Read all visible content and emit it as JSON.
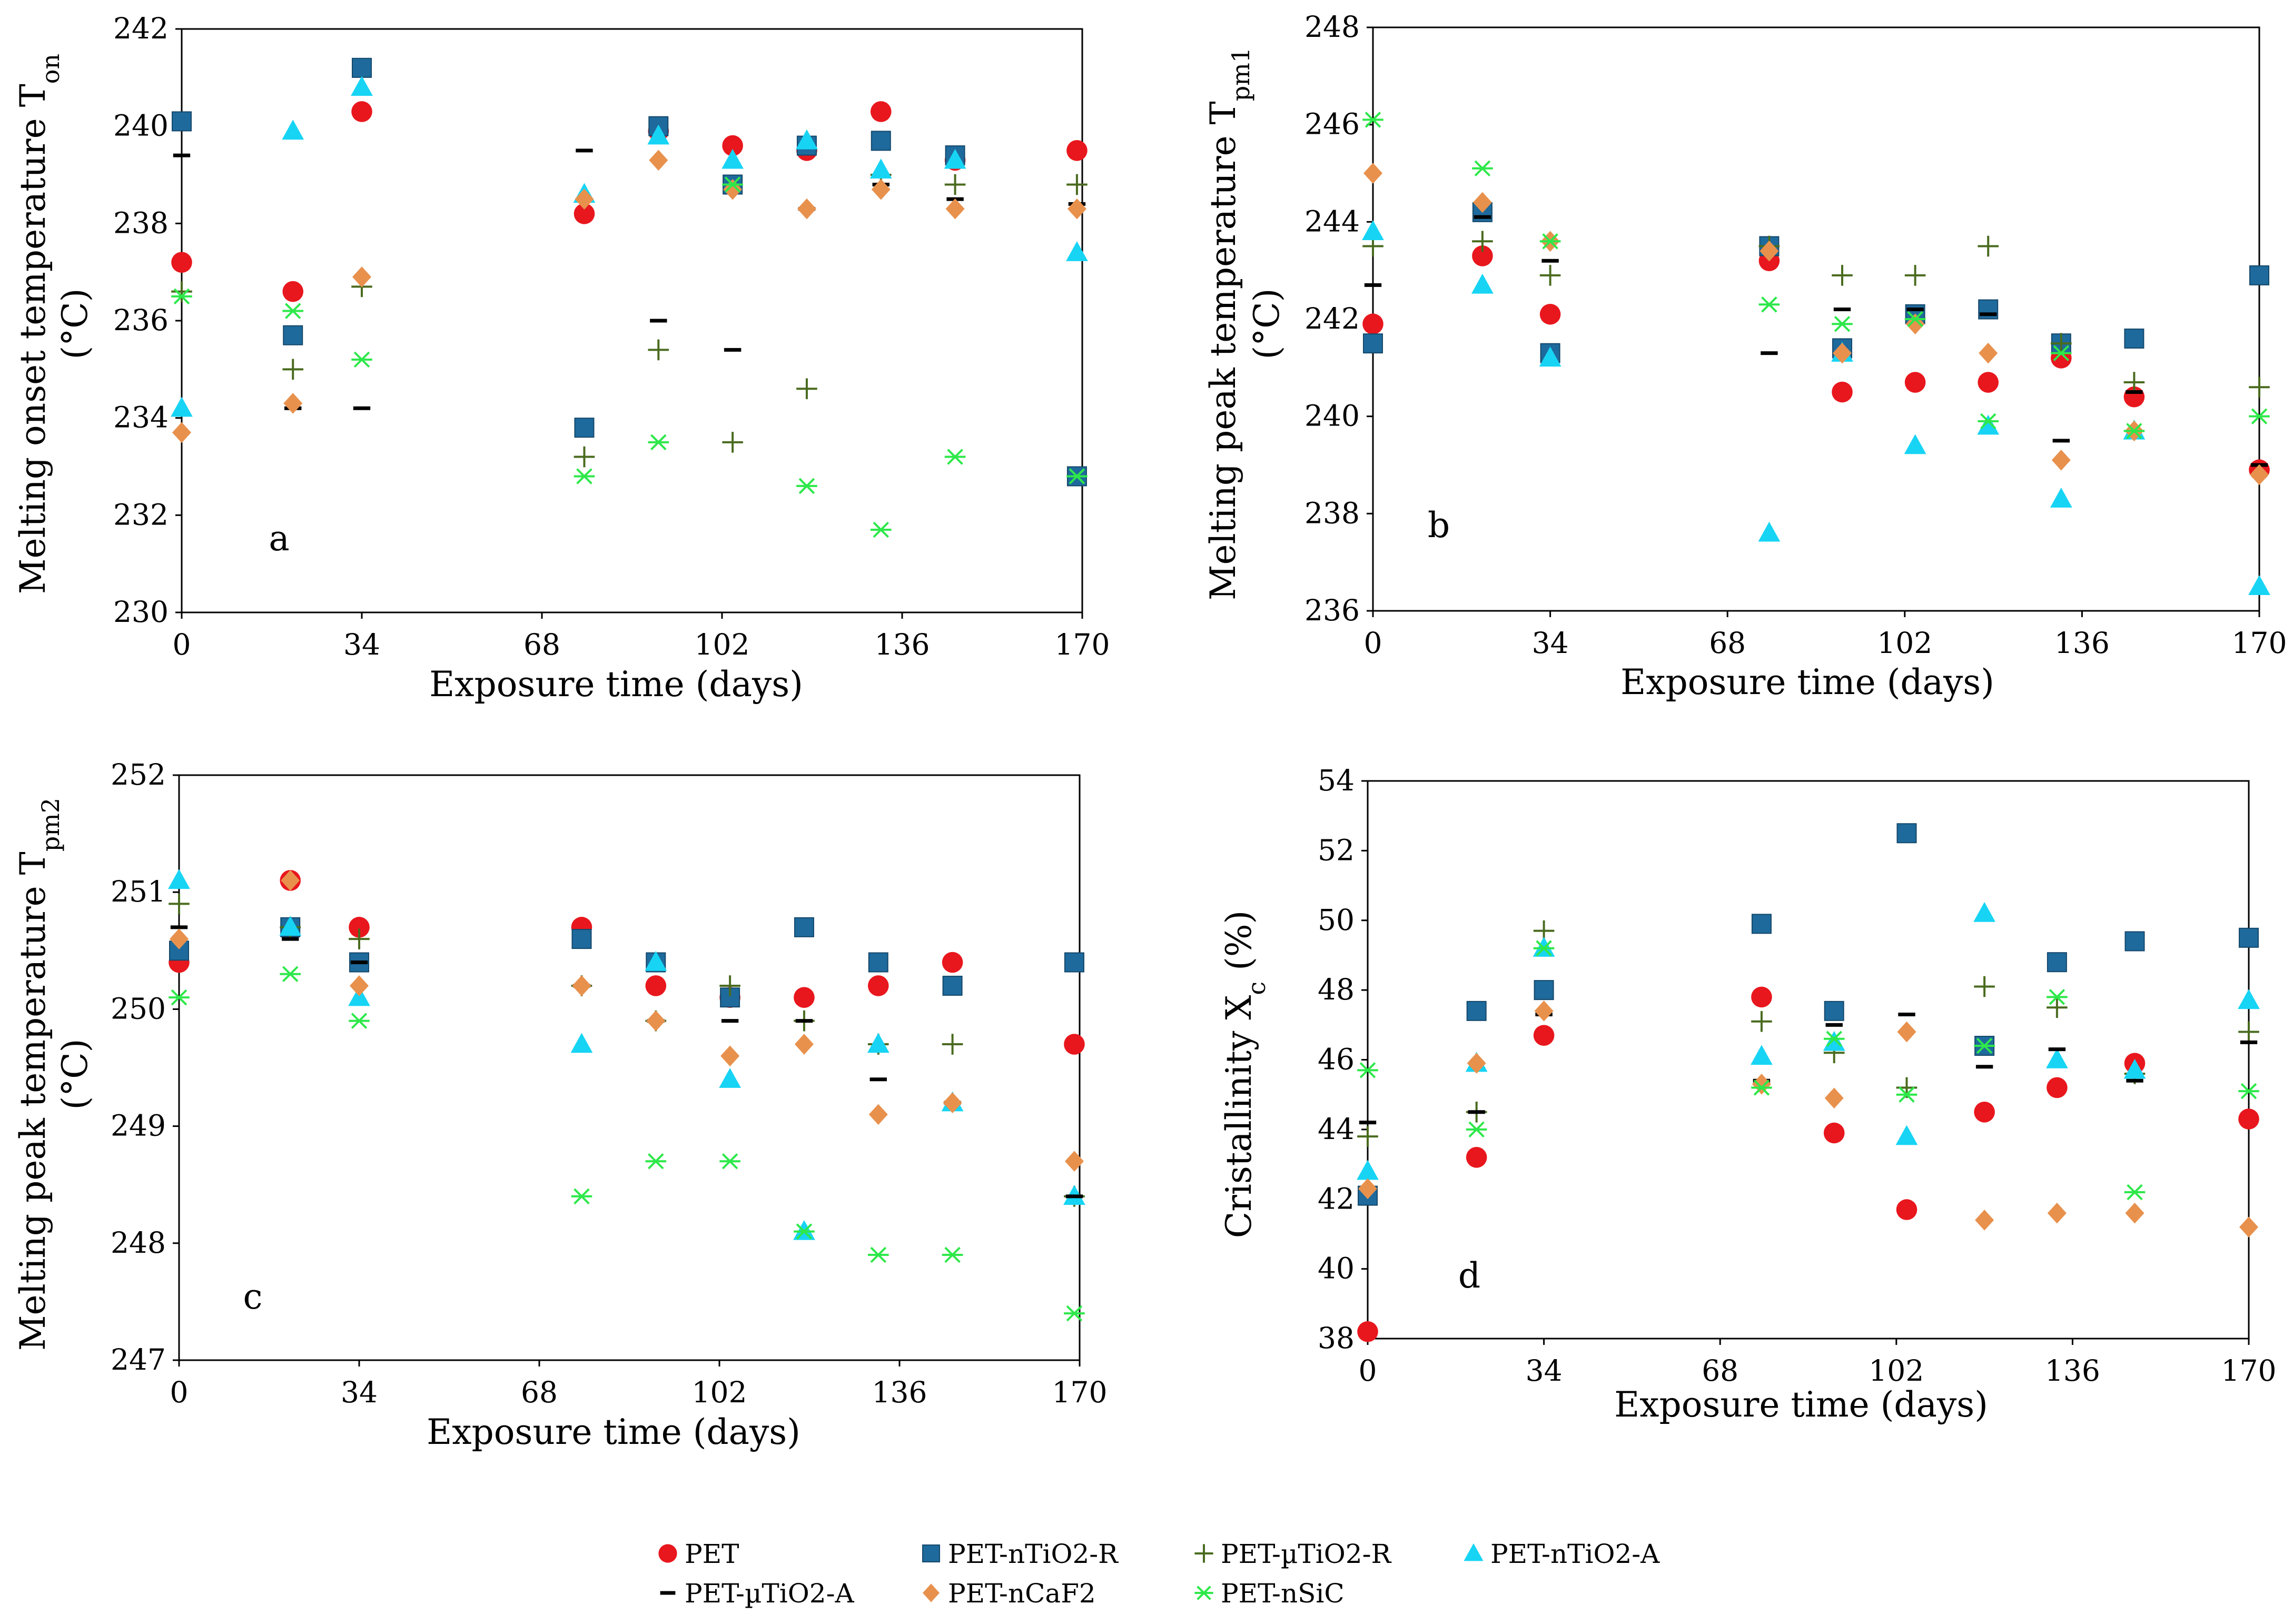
{
  "chart_data": [
    {
      "type": "scatter",
      "panel_label": "a",
      "ylabel_main": "Melting onset temperature T",
      "ylabel_sub": "on",
      "ylabel_unit": "(°C)",
      "xlabel": "Exposure time (days)",
      "xlim": [
        0,
        170
      ],
      "ylim": [
        230,
        242
      ],
      "xticks": [
        0,
        34,
        68,
        102,
        136,
        170
      ],
      "yticks": [
        230,
        232,
        234,
        236,
        238,
        240,
        242
      ],
      "series": [
        {
          "name": "PET",
          "x": [
            0,
            21,
            34,
            76,
            90,
            104,
            118,
            132,
            146,
            169
          ],
          "y": [
            237.2,
            236.6,
            240.3,
            238.2,
            239.9,
            239.6,
            239.5,
            240.3,
            239.3,
            239.5
          ]
        },
        {
          "name": "PET-nTiO2-R",
          "x": [
            0,
            21,
            34,
            76,
            90,
            104,
            118,
            132,
            146,
            169
          ],
          "y": [
            240.1,
            235.7,
            241.2,
            233.8,
            240.0,
            238.8,
            239.6,
            239.7,
            239.4,
            232.8
          ]
        },
        {
          "name": "PET-µTiO2-R",
          "x": [
            0,
            21,
            34,
            76,
            90,
            104,
            118,
            132,
            146,
            169
          ],
          "y": [
            236.6,
            235.0,
            236.7,
            233.2,
            235.4,
            233.5,
            234.6,
            239.0,
            238.8,
            238.8
          ]
        },
        {
          "name": "PET-nTiO2-A",
          "x": [
            0,
            21,
            34,
            76,
            90,
            104,
            118,
            132,
            146,
            169
          ],
          "y": [
            234.2,
            239.9,
            240.8,
            238.6,
            239.8,
            239.3,
            239.7,
            239.1,
            239.3,
            237.4
          ]
        },
        {
          "name": "PET-µTiO2-A",
          "x": [
            0,
            21,
            34,
            76,
            90,
            104,
            118,
            132,
            146,
            169
          ],
          "y": [
            239.4,
            234.2,
            234.2,
            239.5,
            236.0,
            235.4,
            238.3,
            238.8,
            238.5,
            238.4
          ]
        },
        {
          "name": "PET-nCaF2",
          "x": [
            0,
            21,
            34,
            76,
            90,
            104,
            118,
            132,
            146,
            169
          ],
          "y": [
            233.7,
            234.3,
            236.9,
            238.5,
            239.3,
            238.7,
            238.3,
            238.7,
            238.3,
            238.3
          ]
        },
        {
          "name": "PET-nSiC",
          "x": [
            0,
            21,
            34,
            76,
            90,
            104,
            118,
            132,
            146,
            169
          ],
          "y": [
            236.5,
            236.2,
            235.2,
            232.8,
            233.5,
            238.8,
            232.6,
            231.7,
            233.2,
            232.8
          ]
        }
      ]
    },
    {
      "type": "scatter",
      "panel_label": "b",
      "ylabel_main": "Melting peak temperature T",
      "ylabel_sub": "pm1",
      "ylabel_unit": "(°C)",
      "xlabel": "Exposure time (days)",
      "xlim": [
        0,
        170
      ],
      "ylim": [
        236,
        248
      ],
      "xticks": [
        0,
        34,
        68,
        102,
        136,
        170
      ],
      "yticks": [
        236,
        238,
        240,
        242,
        244,
        246,
        248
      ],
      "series": [
        {
          "name": "PET",
          "x": [
            0,
            21,
            34,
            76,
            90,
            104,
            118,
            132,
            146,
            170
          ],
          "y": [
            241.9,
            243.3,
            242.1,
            243.2,
            240.5,
            240.7,
            240.7,
            241.2,
            240.4,
            238.9
          ]
        },
        {
          "name": "PET-nTiO2-R",
          "x": [
            0,
            21,
            34,
            76,
            90,
            104,
            118,
            132,
            146,
            170
          ],
          "y": [
            241.5,
            244.2,
            241.3,
            243.5,
            241.4,
            242.1,
            242.2,
            241.5,
            241.6,
            242.9
          ]
        },
        {
          "name": "PET-µTiO2-R",
          "x": [
            0,
            21,
            34,
            76,
            90,
            104,
            118,
            132,
            146,
            170
          ],
          "y": [
            243.5,
            243.6,
            242.9,
            243.5,
            242.9,
            242.9,
            243.5,
            241.5,
            240.7,
            240.6
          ]
        },
        {
          "name": "PET-nTiO2-A",
          "x": [
            0,
            21,
            34,
            76,
            90,
            104,
            118,
            132,
            146,
            170
          ],
          "y": [
            243.8,
            242.7,
            241.2,
            237.6,
            241.3,
            239.4,
            239.8,
            238.3,
            239.7,
            236.5
          ]
        },
        {
          "name": "PET-µTiO2-A",
          "x": [
            0,
            21,
            34,
            76,
            90,
            104,
            118,
            132,
            146,
            170
          ],
          "y": [
            242.7,
            244.1,
            243.2,
            241.3,
            242.2,
            242.2,
            242.1,
            239.5,
            240.5,
            239.0
          ]
        },
        {
          "name": "PET-nCaF2",
          "x": [
            0,
            21,
            34,
            76,
            90,
            104,
            118,
            132,
            146,
            170
          ],
          "y": [
            245.0,
            244.4,
            243.6,
            243.4,
            241.3,
            241.9,
            241.3,
            239.1,
            239.7,
            238.8
          ]
        },
        {
          "name": "PET-nSiC",
          "x": [
            0,
            21,
            34,
            76,
            90,
            104,
            118,
            132,
            146,
            170
          ],
          "y": [
            246.1,
            245.1,
            243.6,
            242.3,
            241.9,
            242.0,
            239.9,
            241.3,
            239.7,
            240.0
          ]
        }
      ]
    },
    {
      "type": "scatter",
      "panel_label": "c",
      "ylabel_main": "Melting peak temperature T",
      "ylabel_sub": "pm2",
      "ylabel_unit": "(°C)",
      "xlabel": "Exposure time (days)",
      "xlim": [
        0,
        170
      ],
      "ylim": [
        247,
        252
      ],
      "xticks": [
        0,
        34,
        68,
        102,
        136,
        170
      ],
      "yticks": [
        247,
        248,
        249,
        250,
        251,
        252
      ],
      "series": [
        {
          "name": "PET",
          "x": [
            0,
            21,
            34,
            76,
            90,
            104,
            118,
            132,
            146,
            169
          ],
          "y": [
            250.4,
            251.1,
            250.7,
            250.7,
            250.2,
            250.1,
            250.1,
            250.2,
            250.4,
            249.7
          ]
        },
        {
          "name": "PET-nTiO2-R",
          "x": [
            0,
            21,
            34,
            76,
            90,
            104,
            118,
            132,
            146,
            169
          ],
          "y": [
            250.5,
            250.7,
            250.4,
            250.6,
            250.4,
            250.1,
            250.7,
            250.4,
            250.2,
            250.4
          ]
        },
        {
          "name": "PET-µTiO2-R",
          "x": [
            0,
            21,
            34,
            76,
            90,
            104,
            118,
            132,
            146,
            169
          ],
          "y": [
            250.9,
            250.7,
            250.6,
            250.2,
            249.9,
            250.2,
            249.9,
            249.7,
            249.7,
            248.4
          ]
        },
        {
          "name": "PET-nTiO2-A",
          "x": [
            0,
            21,
            34,
            76,
            90,
            104,
            118,
            132,
            146,
            169
          ],
          "y": [
            251.1,
            250.7,
            250.1,
            249.7,
            250.4,
            249.4,
            248.1,
            249.7,
            249.2,
            248.4
          ]
        },
        {
          "name": "PET-µTiO2-A",
          "x": [
            0,
            21,
            34,
            76,
            90,
            104,
            118,
            132,
            146,
            169
          ],
          "y": [
            250.7,
            250.6,
            250.4,
            250.2,
            249.9,
            249.9,
            249.9,
            249.4,
            249.2,
            248.4
          ]
        },
        {
          "name": "PET-nCaF2",
          "x": [
            0,
            21,
            34,
            76,
            90,
            104,
            118,
            132,
            146,
            169
          ],
          "y": [
            250.6,
            251.1,
            250.2,
            250.2,
            249.9,
            249.6,
            249.7,
            249.1,
            249.2,
            248.7
          ]
        },
        {
          "name": "PET-nSiC",
          "x": [
            0,
            21,
            34,
            76,
            90,
            104,
            118,
            132,
            146,
            169
          ],
          "y": [
            250.1,
            250.3,
            249.9,
            248.4,
            248.7,
            248.7,
            248.1,
            247.9,
            247.9,
            247.4
          ]
        }
      ]
    },
    {
      "type": "scatter",
      "panel_label": "d",
      "ylabel_main": "Cristallinity X",
      "ylabel_sub": "c",
      "ylabel_unit": " (%)",
      "xlabel": "Exposure time (days)",
      "xlim": [
        0,
        170
      ],
      "ylim": [
        38,
        54
      ],
      "xticks": [
        0,
        34,
        68,
        102,
        136,
        170
      ],
      "yticks": [
        38,
        40,
        42,
        44,
        46,
        48,
        50,
        52,
        54
      ],
      "series": [
        {
          "name": "PET",
          "x": [
            0,
            21,
            34,
            76,
            90,
            104,
            119,
            133,
            148,
            170
          ],
          "y": [
            38.2,
            43.2,
            46.7,
            47.8,
            43.9,
            41.7,
            44.5,
            45.2,
            45.9,
            44.3
          ]
        },
        {
          "name": "PET-nTiO2-R",
          "x": [
            0,
            21,
            34,
            76,
            90,
            104,
            119,
            133,
            148,
            170
          ],
          "y": [
            42.1,
            47.4,
            48.0,
            49.9,
            47.4,
            52.5,
            46.4,
            48.8,
            49.4,
            49.5
          ]
        },
        {
          "name": "PET-µTiO2-R",
          "x": [
            0,
            21,
            34,
            76,
            90,
            104,
            119,
            133,
            148,
            170
          ],
          "y": [
            43.8,
            44.5,
            49.7,
            47.1,
            46.2,
            45.2,
            48.1,
            47.5,
            45.6,
            46.8
          ]
        },
        {
          "name": "PET-nTiO2-A",
          "x": [
            0,
            21,
            34,
            76,
            90,
            104,
            119,
            133,
            148,
            170
          ],
          "y": [
            42.8,
            45.9,
            49.2,
            46.1,
            46.5,
            43.8,
            50.2,
            46.0,
            45.7,
            47.7
          ]
        },
        {
          "name": "PET-µTiO2-A",
          "x": [
            0,
            21,
            34,
            76,
            90,
            104,
            119,
            133,
            148,
            170
          ],
          "y": [
            44.2,
            44.5,
            47.3,
            45.4,
            47.0,
            47.3,
            45.8,
            46.3,
            45.4,
            46.5
          ]
        },
        {
          "name": "PET-nCaF2",
          "x": [
            0,
            21,
            34,
            76,
            90,
            104,
            119,
            133,
            148,
            170
          ],
          "y": [
            42.3,
            45.9,
            47.4,
            45.3,
            44.9,
            46.8,
            41.4,
            41.6,
            41.6,
            41.2
          ]
        },
        {
          "name": "PET-nSiC",
          "x": [
            0,
            21,
            34,
            76,
            90,
            104,
            119,
            133,
            148,
            170
          ],
          "y": [
            45.7,
            44.0,
            49.2,
            45.2,
            46.6,
            45.0,
            46.4,
            47.8,
            42.2,
            45.1
          ]
        }
      ]
    }
  ],
  "legend": {
    "entries": [
      {
        "name": "PET",
        "marker": "circle",
        "color": "#e8171d"
      },
      {
        "name": "PET-nTiO2-R",
        "marker": "square",
        "color": "#1e6a9c"
      },
      {
        "name": "PET-µTiO2-R",
        "marker": "plus",
        "color": "#4a6b1f"
      },
      {
        "name": "PET-nTiO2-A",
        "marker": "triangle",
        "color": "#17d4f4"
      },
      {
        "name": "PET-µTiO2-A",
        "marker": "dash",
        "color": "#000000"
      },
      {
        "name": "PET-nCaF2",
        "marker": "diamond",
        "color": "#e8914d"
      },
      {
        "name": "PET-nSiC",
        "marker": "asterisk",
        "color": "#2ee84a"
      }
    ]
  }
}
